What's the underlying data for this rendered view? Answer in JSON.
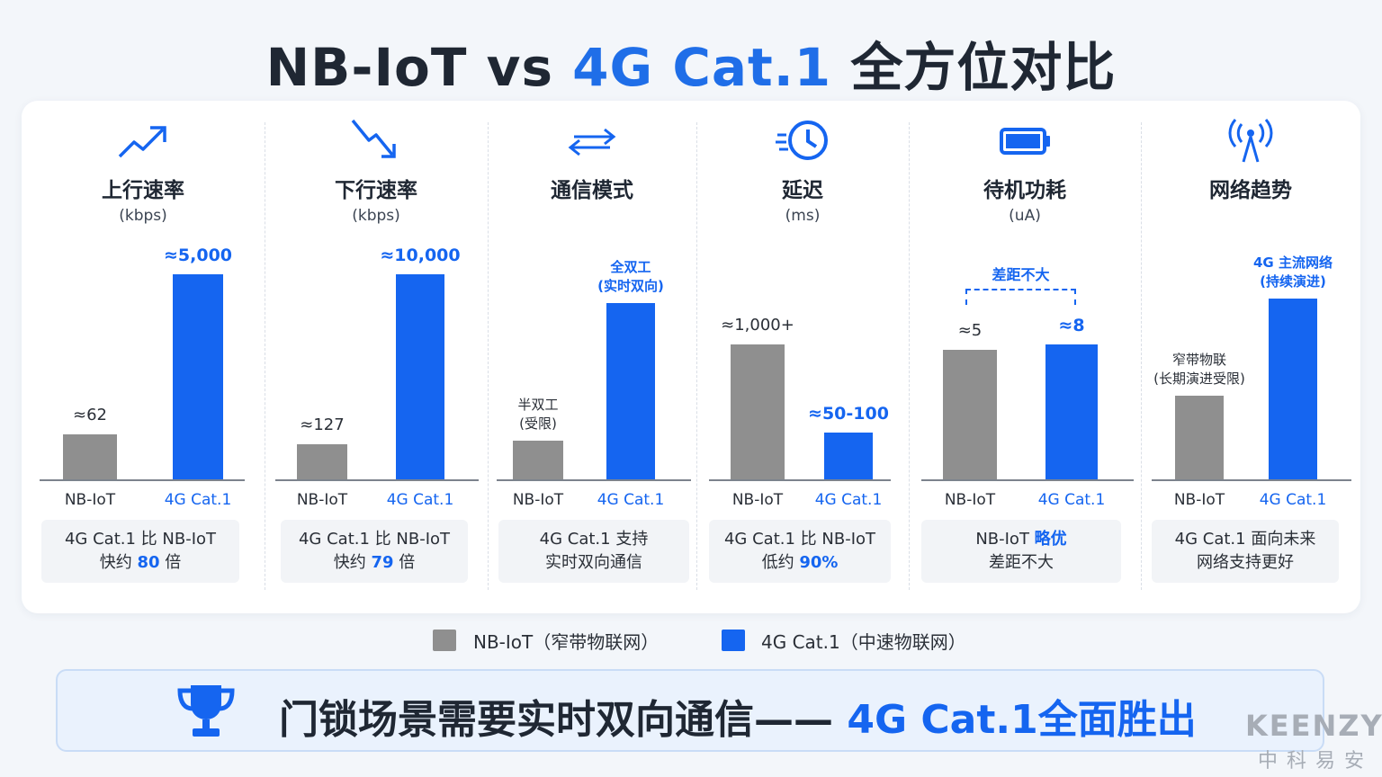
{
  "title": {
    "part1": "NB-IoT vs ",
    "accent": "4G Cat.1",
    "part2": " 全方位对比"
  },
  "colors": {
    "nb": "#8f8f8f",
    "cat1": "#1565f0",
    "text": "#1f2733"
  },
  "columns": [
    {
      "icon": "trend-up-icon",
      "title": "上行速率",
      "unit": "(kbps)",
      "nb_label": "≈62",
      "cat_label": "≈5,000",
      "note_line1": "4G Cat.1 比 NB-IoT",
      "note_pre": "快约 ",
      "note_hl": "80",
      "note_post": " 倍"
    },
    {
      "icon": "trend-down-icon",
      "title": "下行速率",
      "unit": "(kbps)",
      "nb_label": "≈127",
      "cat_label": "≈10,000",
      "note_line1": "4G Cat.1 比 NB-IoT",
      "note_pre": "快约 ",
      "note_hl": "79",
      "note_post": " 倍"
    },
    {
      "icon": "bidirectional-arrows-icon",
      "title": "通信模式",
      "unit": "",
      "nb_label": "半双工",
      "nb_label2": "(受限)",
      "cat_label": "全双工",
      "cat_label2": "(实时双向)",
      "note_line1": "4G Cat.1 支持",
      "note_pre": "实时双向通信",
      "note_hl": "",
      "note_post": ""
    },
    {
      "icon": "clock-icon",
      "title": "延迟",
      "unit": "(ms)",
      "nb_label": "≈1,000+",
      "cat_label": "≈50-100",
      "note_line1": "4G Cat.1 比 NB-IoT",
      "note_pre": "低约 ",
      "note_hl": "90%",
      "note_post": ""
    },
    {
      "icon": "battery-icon",
      "title": "待机功耗",
      "unit": "(uA)",
      "nb_label": "≈5",
      "cat_label": "≈8",
      "bracket_label": "差距不大",
      "note_line1_pre": "NB-IoT ",
      "note_line1_hl": "略优",
      "note_pre": "差距不大",
      "note_hl": "",
      "note_post": ""
    },
    {
      "icon": "antenna-icon",
      "title": "网络趋势",
      "unit": "",
      "nb_label": "窄带物联",
      "nb_label2": "(长期演进受限)",
      "cat_label": "4G 主流网络",
      "cat_label2": "(持续演进)",
      "note_line1": "4G Cat.1 面向未来",
      "note_pre": "网络支持更好",
      "note_hl": "",
      "note_post": ""
    }
  ],
  "x_labels": {
    "nb": "NB-IoT",
    "cat": "4G Cat.1"
  },
  "chart_data": {
    "type": "bar",
    "categories": [
      "上行速率",
      "下行速率",
      "通信模式",
      "延迟",
      "待机功耗",
      "网络趋势"
    ],
    "series": [
      {
        "name": "NB-IoT（窄带物联网）",
        "values": [
          62,
          127,
          null,
          1000,
          5,
          null
        ],
        "labels": [
          "≈62",
          "≈127",
          "半双工(受限)",
          "≈1,000+",
          "≈5",
          "窄带物联(长期演进受限)"
        ]
      },
      {
        "name": "4G Cat.1（中速物联网）",
        "values": [
          5000,
          10000,
          null,
          75,
          8,
          null
        ],
        "labels": [
          "≈5,000",
          "≈10,000",
          "全双工(实时双向)",
          "≈50-100",
          "≈8",
          "4G 主流网络(持续演进)"
        ]
      }
    ],
    "bar_heights_fraction": {
      "nb": [
        0.22,
        0.17,
        0.19,
        0.66,
        0.63,
        0.41
      ],
      "cat": [
        1.0,
        1.0,
        0.86,
        0.23,
        0.66,
        0.88
      ]
    },
    "units": [
      "kbps",
      "kbps",
      "",
      "ms",
      "uA",
      ""
    ],
    "legend": "bottom-center"
  },
  "legend": {
    "nb": "NB-IoT（窄带物联网）",
    "cat": "4G Cat.1（中速物联网）"
  },
  "banner": {
    "text": "门锁场景需要实时双向通信—— ",
    "hl": "4G Cat.1全面胜出"
  },
  "brand": {
    "en": "KEENZY",
    "cn": "中科易安"
  }
}
